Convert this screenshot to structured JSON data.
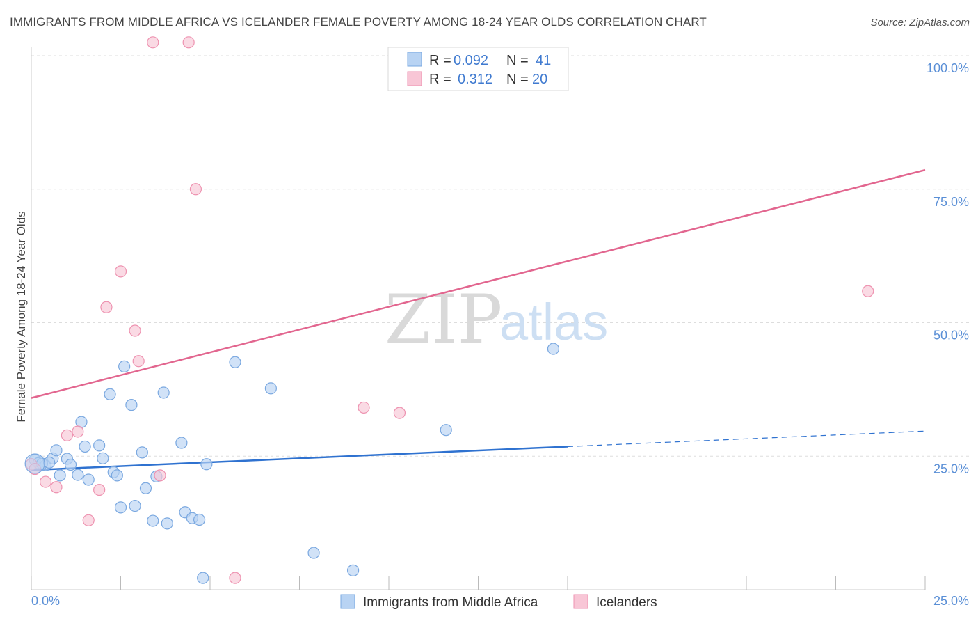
{
  "title": "IMMIGRANTS FROM MIDDLE AFRICA VS ICELANDER FEMALE POVERTY AMONG 18-24 YEAR OLDS CORRELATION CHART",
  "source": "Source: ZipAtlas.com",
  "watermark": {
    "zip": "ZIP",
    "atlas": "atlas"
  },
  "legend": {
    "r_label": "R =",
    "n_label": "N =",
    "rows": [
      {
        "r": "0.092",
        "n": "41"
      },
      {
        "r": "0.312",
        "n": "20"
      }
    ]
  },
  "colors": {
    "blue_fill": "#b8d3f3",
    "blue_stroke": "#7aa8e0",
    "blue_line": "#2f72d0",
    "pink_fill": "#f8c6d6",
    "pink_stroke": "#ee92b0",
    "pink_line": "#e2668f",
    "grid": "#dddddd",
    "axis_tick": "#5a8fd6"
  },
  "chart_data": {
    "type": "scatter",
    "title": "IMMIGRANTS FROM MIDDLE AFRICA VS ICELANDER FEMALE POVERTY AMONG 18-24 YEAR OLDS CORRELATION CHART",
    "xlabel": "",
    "ylabel": "Female Poverty Among 18-24 Year Olds",
    "xlim": [
      0,
      25
    ],
    "ylim": [
      0,
      100
    ],
    "x_tick_labels": [
      "0.0%",
      "25.0%"
    ],
    "y_tick_labels": [
      "100.0%",
      "75.0%",
      "50.0%",
      "25.0%"
    ],
    "y_tick_values": [
      100,
      75,
      50,
      25
    ],
    "legend_position": "top-center",
    "series": [
      {
        "name": "Immigrants from Middle Africa",
        "color": "#b8d3f3",
        "points": [
          [
            0.1,
            24.3
          ],
          [
            0.2,
            23.7
          ],
          [
            0.4,
            23.3
          ],
          [
            0.6,
            24.6
          ],
          [
            0.7,
            26.1
          ],
          [
            0.8,
            21.4
          ],
          [
            1.0,
            24.5
          ],
          [
            1.1,
            23.4
          ],
          [
            1.3,
            21.5
          ],
          [
            1.4,
            31.4
          ],
          [
            1.5,
            26.8
          ],
          [
            1.6,
            20.6
          ],
          [
            1.9,
            27.0
          ],
          [
            2.0,
            24.6
          ],
          [
            2.2,
            36.6
          ],
          [
            2.3,
            22.0
          ],
          [
            2.4,
            21.4
          ],
          [
            2.5,
            15.4
          ],
          [
            2.6,
            41.8
          ],
          [
            2.8,
            34.6
          ],
          [
            2.9,
            15.7
          ],
          [
            3.1,
            25.7
          ],
          [
            3.2,
            19.0
          ],
          [
            3.4,
            12.9
          ],
          [
            3.5,
            21.2
          ],
          [
            3.7,
            36.9
          ],
          [
            3.8,
            12.4
          ],
          [
            4.2,
            27.5
          ],
          [
            4.3,
            14.5
          ],
          [
            4.5,
            13.4
          ],
          [
            4.7,
            13.1
          ],
          [
            4.8,
            2.2
          ],
          [
            4.9,
            23.5
          ],
          [
            5.7,
            42.6
          ],
          [
            6.7,
            37.7
          ],
          [
            7.9,
            6.9
          ],
          [
            9.0,
            3.6
          ],
          [
            11.6,
            29.9
          ],
          [
            14.6,
            45.1
          ],
          [
            0.3,
            23.6
          ],
          [
            0.5,
            23.8
          ]
        ]
      },
      {
        "name": "Icelanders",
        "color": "#f8c6d6",
        "points": [
          [
            0.0,
            23.5
          ],
          [
            0.1,
            22.6
          ],
          [
            0.4,
            20.2
          ],
          [
            0.7,
            19.2
          ],
          [
            1.0,
            28.9
          ],
          [
            1.3,
            29.6
          ],
          [
            1.6,
            13.0
          ],
          [
            1.9,
            18.7
          ],
          [
            2.1,
            52.9
          ],
          [
            2.5,
            59.6
          ],
          [
            2.9,
            48.5
          ],
          [
            3.0,
            42.8
          ],
          [
            3.6,
            21.4
          ],
          [
            3.4,
            102.5
          ],
          [
            4.4,
            102.5
          ],
          [
            4.6,
            75.0
          ],
          [
            5.7,
            2.2
          ],
          [
            9.3,
            34.1
          ],
          [
            10.3,
            33.1
          ],
          [
            23.4,
            55.9
          ]
        ]
      }
    ],
    "trend_lines": [
      {
        "series": "Immigrants from Middle Africa",
        "x": [
          0,
          15
        ],
        "y": [
          22.4,
          26.8
        ],
        "style": "solid"
      },
      {
        "series": "Immigrants from Middle Africa",
        "x": [
          15,
          25
        ],
        "y": [
          26.8,
          29.7
        ],
        "style": "dashed"
      },
      {
        "series": "Icelanders",
        "x": [
          0,
          25
        ],
        "y": [
          35.9,
          78.6
        ],
        "style": "solid"
      }
    ]
  }
}
